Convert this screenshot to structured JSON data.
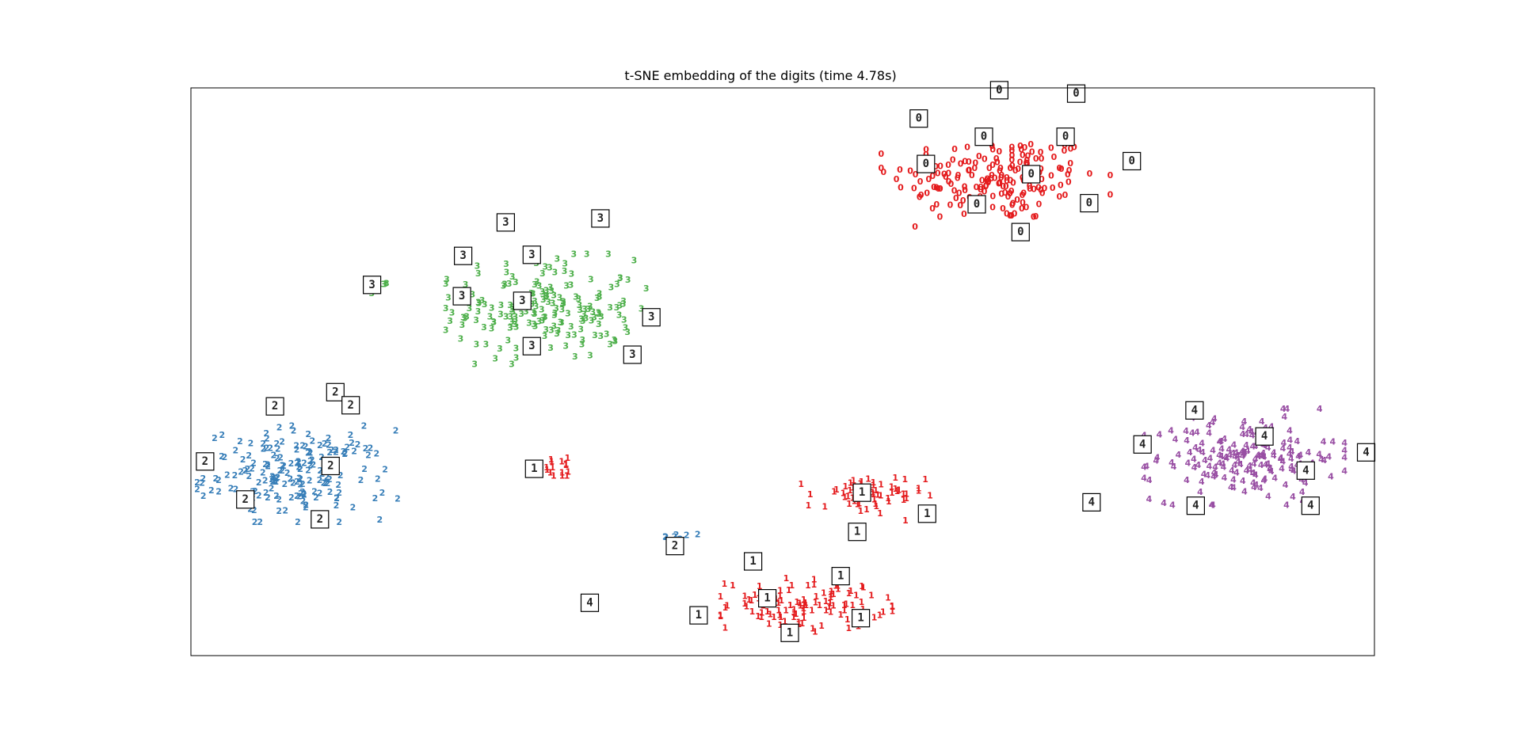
{
  "chart_data": {
    "type": "scatter",
    "title": "t-SNE embedding of the digits (time 4.78s)",
    "xlabel": "",
    "ylabel": "",
    "xlim": [
      0,
      1
    ],
    "ylim": [
      0,
      1
    ],
    "axis_ticks_visible": false,
    "grid": false,
    "legend": "none",
    "colors": {
      "0": "#e41a1c",
      "1": "#e41a1c",
      "2": "#377eb8",
      "3": "#4daf4a",
      "4": "#984ea3"
    },
    "clusters": [
      {
        "label": "0",
        "center": [
          0.68,
          0.84
        ],
        "spread": [
          0.08,
          0.07
        ],
        "count": 180
      },
      {
        "label": "3",
        "center": [
          0.3,
          0.61
        ],
        "spread": [
          0.07,
          0.08
        ],
        "count": 180
      },
      {
        "label": "3",
        "center": [
          0.16,
          0.65
        ],
        "spread": [
          0.008,
          0.012
        ],
        "count": 6
      },
      {
        "label": "2",
        "center": [
          0.09,
          0.32
        ],
        "spread": [
          0.07,
          0.07
        ],
        "count": 176
      },
      {
        "label": "2",
        "center": [
          0.41,
          0.21
        ],
        "spread": [
          0.015,
          0.005
        ],
        "count": 7
      },
      {
        "label": "1",
        "center": [
          0.52,
          0.09
        ],
        "spread": [
          0.06,
          0.04
        ],
        "count": 110
      },
      {
        "label": "1",
        "center": [
          0.57,
          0.28
        ],
        "spread": [
          0.045,
          0.035
        ],
        "count": 60
      },
      {
        "label": "1",
        "center": [
          0.31,
          0.33
        ],
        "spread": [
          0.02,
          0.015
        ],
        "count": 16
      },
      {
        "label": "4",
        "center": [
          0.89,
          0.35
        ],
        "spread": [
          0.07,
          0.07
        ],
        "count": 180
      }
    ],
    "thumbnails": [
      {
        "label": "0",
        "x": 0.683,
        "y": 0.996
      },
      {
        "label": "0",
        "x": 0.748,
        "y": 0.99
      },
      {
        "label": "0",
        "x": 0.615,
        "y": 0.946
      },
      {
        "label": "0",
        "x": 0.67,
        "y": 0.914
      },
      {
        "label": "0",
        "x": 0.739,
        "y": 0.914
      },
      {
        "label": "0",
        "x": 0.621,
        "y": 0.866
      },
      {
        "label": "0",
        "x": 0.71,
        "y": 0.848
      },
      {
        "label": "0",
        "x": 0.795,
        "y": 0.871
      },
      {
        "label": "0",
        "x": 0.664,
        "y": 0.795
      },
      {
        "label": "0",
        "x": 0.759,
        "y": 0.797
      },
      {
        "label": "0",
        "x": 0.701,
        "y": 0.746
      },
      {
        "label": "3",
        "x": 0.346,
        "y": 0.77
      },
      {
        "label": "3",
        "x": 0.266,
        "y": 0.763
      },
      {
        "label": "3",
        "x": 0.288,
        "y": 0.706
      },
      {
        "label": "3",
        "x": 0.23,
        "y": 0.704
      },
      {
        "label": "3",
        "x": 0.153,
        "y": 0.653
      },
      {
        "label": "3",
        "x": 0.229,
        "y": 0.633
      },
      {
        "label": "3",
        "x": 0.28,
        "y": 0.625
      },
      {
        "label": "3",
        "x": 0.389,
        "y": 0.596
      },
      {
        "label": "3",
        "x": 0.288,
        "y": 0.545
      },
      {
        "label": "3",
        "x": 0.373,
        "y": 0.53
      },
      {
        "label": "2",
        "x": 0.122,
        "y": 0.464
      },
      {
        "label": "2",
        "x": 0.071,
        "y": 0.439
      },
      {
        "label": "2",
        "x": 0.135,
        "y": 0.441
      },
      {
        "label": "2",
        "x": 0.012,
        "y": 0.342
      },
      {
        "label": "2",
        "x": 0.118,
        "y": 0.334
      },
      {
        "label": "2",
        "x": 0.046,
        "y": 0.275
      },
      {
        "label": "2",
        "x": 0.109,
        "y": 0.24
      },
      {
        "label": "2",
        "x": 0.409,
        "y": 0.193
      },
      {
        "label": "1",
        "x": 0.29,
        "y": 0.329
      },
      {
        "label": "1",
        "x": 0.567,
        "y": 0.287
      },
      {
        "label": "1",
        "x": 0.622,
        "y": 0.25
      },
      {
        "label": "1",
        "x": 0.563,
        "y": 0.218
      },
      {
        "label": "1",
        "x": 0.475,
        "y": 0.166
      },
      {
        "label": "1",
        "x": 0.549,
        "y": 0.14
      },
      {
        "label": "1",
        "x": 0.487,
        "y": 0.101
      },
      {
        "label": "1",
        "x": 0.429,
        "y": 0.071
      },
      {
        "label": "1",
        "x": 0.566,
        "y": 0.066
      },
      {
        "label": "1",
        "x": 0.506,
        "y": 0.04
      },
      {
        "label": "4",
        "x": 0.337,
        "y": 0.093
      },
      {
        "label": "4",
        "x": 0.848,
        "y": 0.432
      },
      {
        "label": "4",
        "x": 0.907,
        "y": 0.386
      },
      {
        "label": "4",
        "x": 0.804,
        "y": 0.372
      },
      {
        "label": "4",
        "x": 0.993,
        "y": 0.358
      },
      {
        "label": "4",
        "x": 0.942,
        "y": 0.326
      },
      {
        "label": "4",
        "x": 0.761,
        "y": 0.27
      },
      {
        "label": "4",
        "x": 0.849,
        "y": 0.264
      },
      {
        "label": "4",
        "x": 0.946,
        "y": 0.264
      }
    ]
  }
}
